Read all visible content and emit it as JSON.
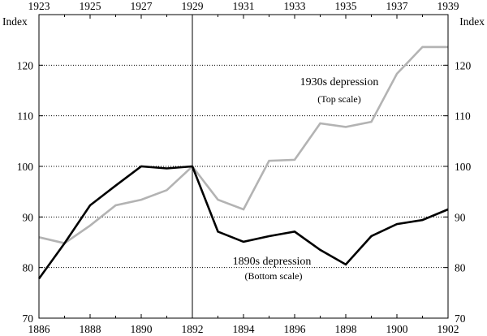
{
  "chart_data": {
    "type": "line",
    "y_unit_left": "Index",
    "y_unit_right": "Index",
    "ylim": [
      70,
      130
    ],
    "y_ticks": [
      70,
      80,
      90,
      100,
      110,
      120
    ],
    "grid": "dotted-horizontal",
    "bottom_axis": {
      "xlim": [
        1886,
        1902
      ],
      "ticks": [
        1886,
        1888,
        1890,
        1892,
        1894,
        1896,
        1898,
        1900,
        1902
      ]
    },
    "top_axis": {
      "xlim": [
        1923,
        1939
      ],
      "ticks": [
        1923,
        1925,
        1927,
        1929,
        1931,
        1933,
        1935,
        1937,
        1939
      ]
    },
    "reference_line_x_bottom": 1892,
    "series": [
      {
        "name": "1890s depression",
        "scale_note": "(Bottom scale)",
        "axis": "bottom",
        "color": "#000000",
        "x": [
          1886,
          1887,
          1888,
          1889,
          1890,
          1891,
          1892,
          1893,
          1894,
          1895,
          1896,
          1897,
          1898,
          1899,
          1900,
          1901,
          1902
        ],
        "y": [
          77.8,
          84.8,
          92.3,
          96.2,
          100.0,
          99.6,
          100.0,
          87.1,
          85.1,
          86.2,
          87.1,
          83.5,
          80.6,
          86.2,
          88.6,
          89.4,
          91.5
        ]
      },
      {
        "name": "1930s depression",
        "scale_note": "(Top scale)",
        "axis": "top",
        "color": "#b3b3b3",
        "x": [
          1923,
          1924,
          1925,
          1926,
          1927,
          1928,
          1929,
          1930,
          1931,
          1932,
          1933,
          1934,
          1935,
          1936,
          1937,
          1938,
          1939
        ],
        "y": [
          86.0,
          84.8,
          88.3,
          92.3,
          93.4,
          95.3,
          100.0,
          93.4,
          91.5,
          101.1,
          101.3,
          108.5,
          107.8,
          108.8,
          118.3,
          123.6,
          123.6
        ]
      }
    ]
  }
}
